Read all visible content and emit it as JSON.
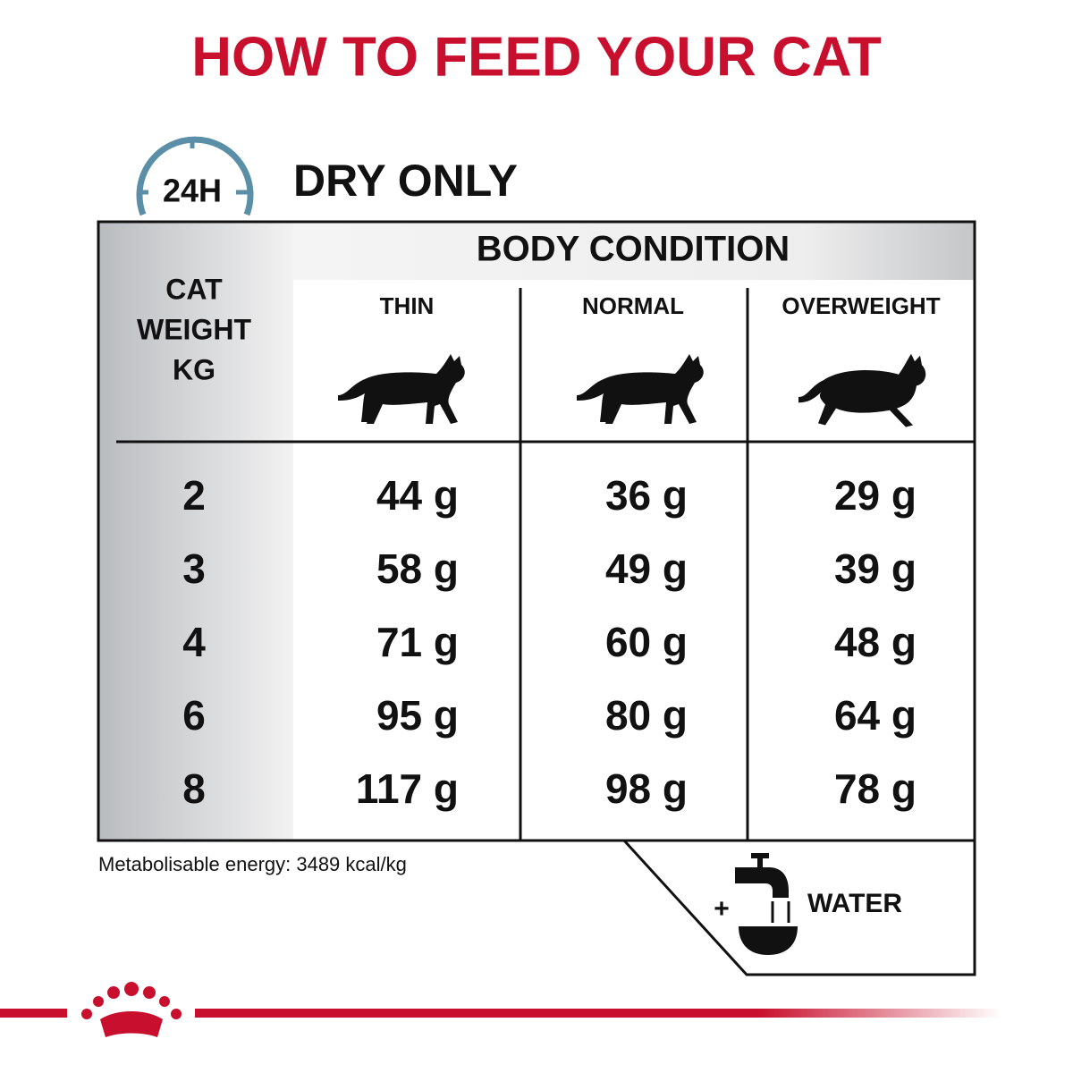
{
  "title": "HOW TO FEED YOUR CAT",
  "clock_label": "24H",
  "section": "DRY ONLY",
  "table": {
    "row_header": [
      "CAT",
      "WEIGHT",
      "KG"
    ],
    "group_header": "BODY CONDITION",
    "columns": [
      "THIN",
      "NORMAL",
      "OVERWEIGHT"
    ],
    "rows": [
      [
        "2",
        "44 g",
        "36 g",
        "29 g"
      ],
      [
        "3",
        "58 g",
        "49 g",
        "39 g"
      ],
      [
        "4",
        "71 g",
        "60 g",
        "48 g"
      ],
      [
        "6",
        "95 g",
        "80 g",
        "64 g"
      ],
      [
        "8",
        "117 g",
        "98 g",
        "78 g"
      ]
    ]
  },
  "footnote": "Metabolisable energy: 3489 kcal/kg",
  "water": {
    "plus": "+",
    "label": "WATER"
  }
}
